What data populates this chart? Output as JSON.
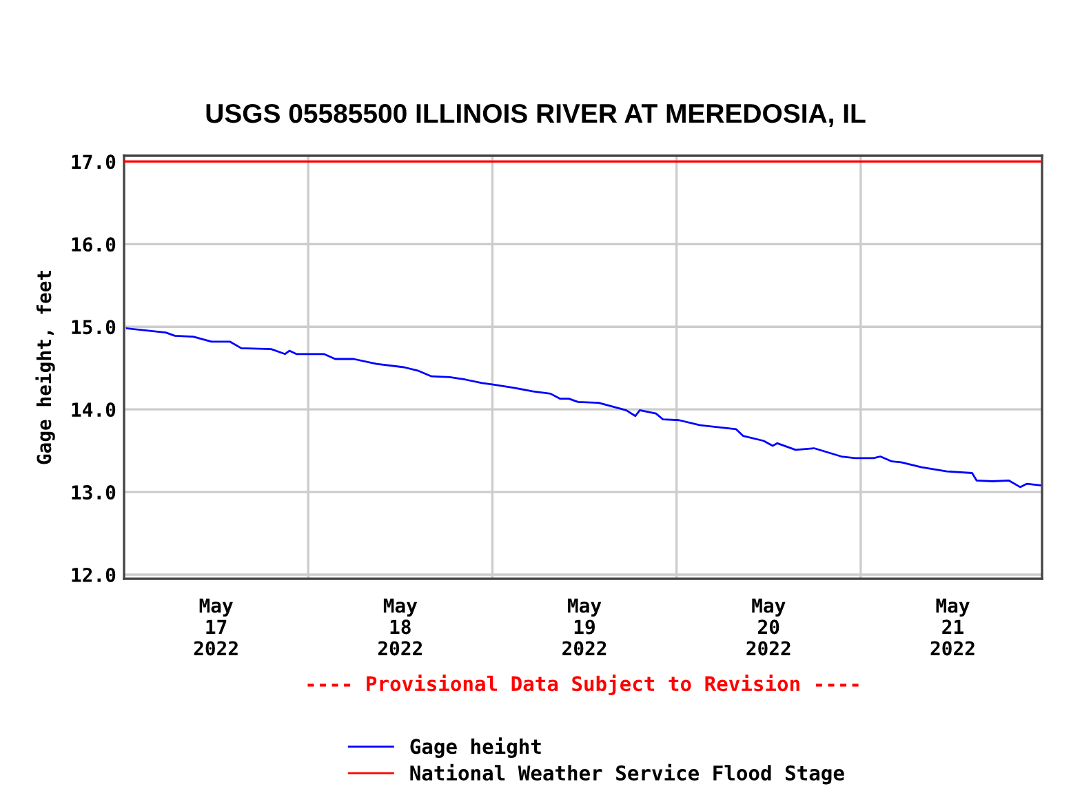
{
  "chart_data": {
    "type": "line",
    "title": "USGS 05585500 ILLINOIS RIVER AT MEREDOSIA, IL",
    "ylabel": "Gage height, feet",
    "series": [
      {
        "name": "Gage height",
        "color": "#0000ff",
        "x": [
          "2022-05-17T00:22",
          "2022-05-17T05:26",
          "2022-05-17T06:38",
          "2022-05-17T09:01",
          "2022-05-17T11:24",
          "2022-05-17T13:47",
          "2022-05-17T15:17",
          "2022-05-17T19:10",
          "2022-05-17T20:58",
          "2022-05-17T21:33",
          "2022-05-17T22:27",
          "2022-05-18T02:02",
          "2022-05-18T03:31",
          "2022-05-18T05:55",
          "2022-05-18T08:54",
          "2022-05-18T12:29",
          "2022-05-18T14:16",
          "2022-05-18T16:04",
          "2022-05-18T18:27",
          "2022-05-18T20:32",
          "2022-05-18T22:38",
          "2022-05-19T00:07",
          "2022-05-19T02:49",
          "2022-05-19T05:12",
          "2022-05-19T07:35",
          "2022-05-19T08:47",
          "2022-05-19T09:58",
          "2022-05-19T11:10",
          "2022-05-19T13:51",
          "2022-05-19T17:26",
          "2022-05-19T18:38",
          "2022-05-19T19:13",
          "2022-05-19T21:19",
          "2022-05-19T22:13",
          "2022-05-20T00:18",
          "2022-05-20T02:59",
          "2022-05-20T07:46",
          "2022-05-20T08:40",
          "2022-05-20T11:20",
          "2022-05-20T12:32",
          "2022-05-20T13:08",
          "2022-05-20T15:31",
          "2022-05-20T17:55",
          "2022-05-20T21:29",
          "2022-05-20T23:17",
          "2022-05-21T01:40",
          "2022-05-21T02:34",
          "2022-05-21T04:04",
          "2022-05-21T05:15",
          "2022-05-21T07:56",
          "2022-05-21T11:13",
          "2022-05-21T14:31",
          "2022-05-21T15:06",
          "2022-05-21T17:11",
          "2022-05-21T19:17",
          "2022-05-21T20:47",
          "2022-05-21T21:40",
          "2022-05-21T23:28"
        ],
        "values": [
          14.98,
          14.93,
          14.89,
          14.88,
          14.82,
          14.82,
          14.74,
          14.73,
          14.67,
          14.71,
          14.67,
          14.67,
          14.61,
          14.61,
          14.55,
          14.51,
          14.47,
          14.4,
          14.39,
          14.36,
          14.32,
          14.3,
          14.26,
          14.22,
          14.19,
          14.13,
          14.13,
          14.09,
          14.08,
          13.99,
          13.92,
          13.99,
          13.95,
          13.88,
          13.87,
          13.81,
          13.76,
          13.68,
          13.62,
          13.56,
          13.59,
          13.51,
          13.53,
          13.43,
          13.41,
          13.41,
          13.43,
          13.37,
          13.36,
          13.3,
          13.25,
          13.23,
          13.14,
          13.13,
          13.14,
          13.06,
          13.1,
          13.08
        ]
      }
    ],
    "ref_lines": [
      {
        "axis": "y",
        "value": 17.0,
        "label": "National Weather Service Flood Stage",
        "color": "#ff0000"
      },
      {
        "axis": "x",
        "value": "2022-05-18T00:00",
        "color": "#cccccc"
      },
      {
        "axis": "x",
        "value": "2022-05-19T00:00",
        "color": "#cccccc"
      },
      {
        "axis": "x",
        "value": "2022-05-20T00:00",
        "color": "#cccccc"
      },
      {
        "axis": "x",
        "value": "2022-05-21T00:00",
        "color": "#cccccc"
      }
    ],
    "xlim": [
      "2022-05-17T00:00",
      "2022-05-21T23:38"
    ],
    "xticks": [
      {
        "value": "2022-05-17T12:00",
        "label": "May\n17\n2022"
      },
      {
        "value": "2022-05-18T12:00",
        "label": "May\n18\n2022"
      },
      {
        "value": "2022-05-19T12:00",
        "label": "May\n19\n2022"
      },
      {
        "value": "2022-05-20T12:00",
        "label": "May\n20\n2022"
      },
      {
        "value": "2022-05-21T12:00",
        "label": "May\n21\n2022"
      }
    ],
    "ylim": [
      11.95,
      17.07
    ],
    "yticks": [
      {
        "value": 12,
        "label": "12.0"
      },
      {
        "value": 13,
        "label": "13.0"
      },
      {
        "value": 14,
        "label": "14.0"
      },
      {
        "value": 15,
        "label": "15.0"
      },
      {
        "value": 16,
        "label": "16.0"
      },
      {
        "value": 17,
        "label": "17.0"
      }
    ],
    "grid": "y",
    "legend": "bottom",
    "marker": "none",
    "line_style": "solid",
    "annotations": [
      "---- Provisional Data Subject to Revision ----"
    ]
  }
}
